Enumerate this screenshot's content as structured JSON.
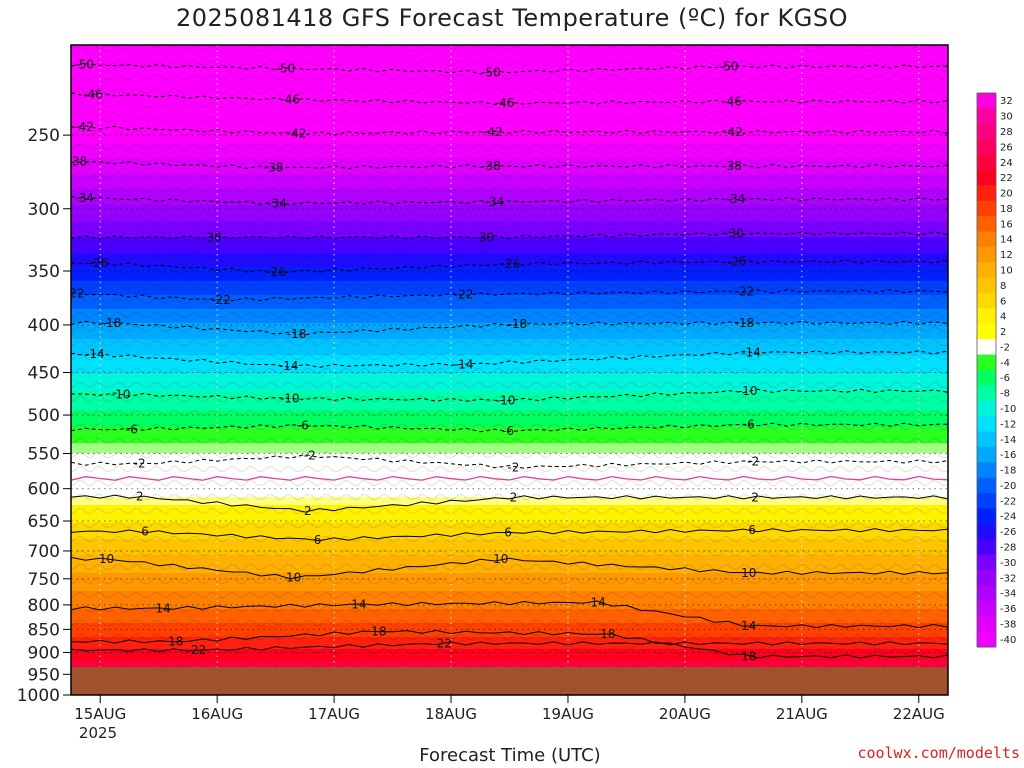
{
  "page": {
    "title": "2025081418 GFS Forecast Temperature (ºC) for KGSO",
    "xlabel": "Forecast Time (UTC)",
    "credit": "coolwx.com/modelts"
  },
  "chart_data": {
    "type": "heatmap",
    "title": "2025081418 GFS Forecast Temperature (ºC) for KGSO",
    "xlabel": "Forecast Time (UTC)",
    "ylabel": "",
    "x_ticks": [
      "15AUG",
      "16AUG",
      "17AUG",
      "18AUG",
      "19AUG",
      "20AUG",
      "21AUG",
      "22AUG"
    ],
    "x_year_label": "2025",
    "x_range_hours": [
      -6,
      174
    ],
    "y_ticks": [
      250,
      300,
      350,
      400,
      450,
      500,
      550,
      600,
      650,
      700,
      750,
      800,
      850,
      900,
      950,
      1000
    ],
    "y_range": [
      200,
      1000
    ],
    "y_scale": "log",
    "surface_pressure": 975,
    "grid": "dotted",
    "colorbar_levels": [
      32,
      30,
      28,
      26,
      24,
      22,
      20,
      18,
      16,
      14,
      12,
      10,
      8,
      6,
      4,
      2,
      -2,
      -4,
      -6,
      -8,
      -10,
      -12,
      -14,
      -16,
      -18,
      -20,
      -22,
      -24,
      -26,
      -28,
      -30,
      -32,
      -34,
      -36,
      -38,
      -40
    ],
    "colors": {
      "ground": "#a0522d",
      "zero_line": "#e0409a",
      "positive_contour": "#000000",
      "negative_contour": "#000000"
    },
    "freezing_level_hpa": 585,
    "profile": [
      {
        "p": 200,
        "t": -56
      },
      {
        "p": 215,
        "t": -51
      },
      {
        "p": 225,
        "t": -47
      },
      {
        "p": 250,
        "t": -42
      },
      {
        "p": 270,
        "t": -38
      },
      {
        "p": 290,
        "t": -34
      },
      {
        "p": 315,
        "t": -30
      },
      {
        "p": 340,
        "t": -26
      },
      {
        "p": 365,
        "t": -22
      },
      {
        "p": 390,
        "t": -18
      },
      {
        "p": 420,
        "t": -14
      },
      {
        "p": 460,
        "t": -10
      },
      {
        "p": 505,
        "t": -6
      },
      {
        "p": 545,
        "t": -2
      },
      {
        "p": 585,
        "t": 0
      },
      {
        "p": 610,
        "t": 2
      },
      {
        "p": 665,
        "t": 6
      },
      {
        "p": 720,
        "t": 10
      },
      {
        "p": 790,
        "t": 14
      },
      {
        "p": 850,
        "t": 18
      },
      {
        "p": 905,
        "t": 22
      },
      {
        "p": 950,
        "t": 26
      },
      {
        "p": 1000,
        "t": 30
      }
    ],
    "contour_labels": [
      {
        "value": "-50",
        "x": -3.3,
        "p": 210
      },
      {
        "value": "-50",
        "x": 38,
        "p": 212
      },
      {
        "value": "-50",
        "x": 80.2,
        "p": 214
      },
      {
        "value": "-50",
        "x": 129,
        "p": 211
      },
      {
        "value": "-46",
        "x": -1.5,
        "p": 226
      },
      {
        "value": "-46",
        "x": 39,
        "p": 229
      },
      {
        "value": "-46",
        "x": 83,
        "p": 231
      },
      {
        "value": "-46",
        "x": 129.7,
        "p": 230
      },
      {
        "value": "-42",
        "x": -3.3,
        "p": 245
      },
      {
        "value": "-42",
        "x": 40.3,
        "p": 249
      },
      {
        "value": "-42",
        "x": 80.6,
        "p": 248
      },
      {
        "value": "-42",
        "x": 129.9,
        "p": 248
      },
      {
        "value": "-38",
        "x": -4.7,
        "p": 267
      },
      {
        "value": "-38",
        "x": 35.6,
        "p": 271
      },
      {
        "value": "-38",
        "x": 80.2,
        "p": 270
      },
      {
        "value": "-38",
        "x": 129.7,
        "p": 270
      },
      {
        "value": "-34",
        "x": -3.3,
        "p": 292
      },
      {
        "value": "-34",
        "x": 36.3,
        "p": 296
      },
      {
        "value": "-34",
        "x": 80.9,
        "p": 295
      },
      {
        "value": "-34",
        "x": 130.4,
        "p": 293
      },
      {
        "value": "-30",
        "x": 22.9,
        "p": 322
      },
      {
        "value": "-30",
        "x": 78.8,
        "p": 322
      },
      {
        "value": "-30",
        "x": 130.1,
        "p": 319
      },
      {
        "value": "-26",
        "x": -0.3,
        "p": 343
      },
      {
        "value": "-26",
        "x": 36.1,
        "p": 351
      },
      {
        "value": "-26",
        "x": 84.2,
        "p": 344
      },
      {
        "value": "-26",
        "x": 130.6,
        "p": 342
      },
      {
        "value": "-22",
        "x": -5.2,
        "p": 370
      },
      {
        "value": "-22",
        "x": 24.8,
        "p": 376
      },
      {
        "value": "-22",
        "x": 74.6,
        "p": 371
      },
      {
        "value": "-22",
        "x": 132.2,
        "p": 368
      },
      {
        "value": "-18",
        "x": 2.3,
        "p": 398
      },
      {
        "value": "-18",
        "x": 40.3,
        "p": 409
      },
      {
        "value": "-18",
        "x": 85.6,
        "p": 399
      },
      {
        "value": "-18",
        "x": 132.2,
        "p": 398
      },
      {
        "value": "-14",
        "x": -1.1,
        "p": 430
      },
      {
        "value": "-14",
        "x": 38.7,
        "p": 443
      },
      {
        "value": "-14",
        "x": 74.6,
        "p": 441
      },
      {
        "value": "-14",
        "x": 133.6,
        "p": 428
      },
      {
        "value": "-10",
        "x": 4.2,
        "p": 475
      },
      {
        "value": "-10",
        "x": 38.9,
        "p": 480
      },
      {
        "value": "-10",
        "x": 83.2,
        "p": 482
      },
      {
        "value": "-10",
        "x": 132.9,
        "p": 471
      },
      {
        "value": "-6",
        "x": 6.5,
        "p": 518
      },
      {
        "value": "-6",
        "x": 41.6,
        "p": 513
      },
      {
        "value": "-6",
        "x": 83.7,
        "p": 520
      },
      {
        "value": "-6",
        "x": 133.1,
        "p": 512
      },
      {
        "value": "-2",
        "x": 8.1,
        "p": 564
      },
      {
        "value": "-2",
        "x": 43,
        "p": 553
      },
      {
        "value": "-2",
        "x": 84.8,
        "p": 569
      },
      {
        "value": "-2",
        "x": 134,
        "p": 561
      },
      {
        "value": "2",
        "x": 8.1,
        "p": 612
      },
      {
        "value": "2",
        "x": 42.6,
        "p": 634
      },
      {
        "value": "2",
        "x": 84.8,
        "p": 613
      },
      {
        "value": "2",
        "x": 134.4,
        "p": 613
      },
      {
        "value": "6",
        "x": 9.2,
        "p": 667
      },
      {
        "value": "6",
        "x": 44.6,
        "p": 681
      },
      {
        "value": "6",
        "x": 83.7,
        "p": 669
      },
      {
        "value": "6",
        "x": 133.8,
        "p": 665
      },
      {
        "value": "10",
        "x": 1.3,
        "p": 714
      },
      {
        "value": "10",
        "x": 39.7,
        "p": 748
      },
      {
        "value": "10",
        "x": 82.2,
        "p": 714
      },
      {
        "value": "10",
        "x": 133.1,
        "p": 739
      },
      {
        "value": "14",
        "x": 12.9,
        "p": 807
      },
      {
        "value": "14",
        "x": 53.1,
        "p": 799
      },
      {
        "value": "14",
        "x": 102.2,
        "p": 795
      },
      {
        "value": "14",
        "x": 133.1,
        "p": 843
      },
      {
        "value": "18",
        "x": 15.5,
        "p": 876
      },
      {
        "value": "18",
        "x": 57.2,
        "p": 854
      },
      {
        "value": "18",
        "x": 104.2,
        "p": 860
      },
      {
        "value": "18",
        "x": 133.1,
        "p": 909
      },
      {
        "value": "22",
        "x": 20.2,
        "p": 895
      },
      {
        "value": "22",
        "x": 70.6,
        "p": 880
      }
    ]
  }
}
